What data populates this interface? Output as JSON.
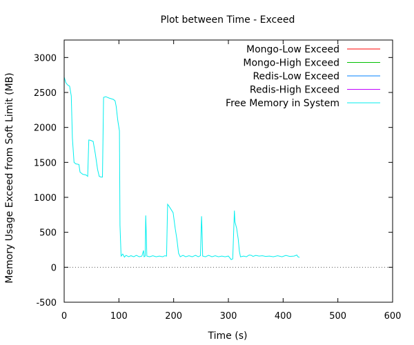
{
  "chart_data": {
    "type": "line",
    "title": "Plot between Time - Exceed",
    "xlabel": "Time (s)",
    "ylabel": "Memory Usage Exceed from Soft Limit (MB)",
    "xlim": [
      0,
      600
    ],
    "ylim": [
      -500,
      3250
    ],
    "xticks": [
      0,
      100,
      200,
      300,
      400,
      500,
      600
    ],
    "yticks": [
      -500,
      0,
      500,
      1000,
      1500,
      2000,
      2500,
      3000
    ],
    "grid": false,
    "zero_line": "dotted",
    "legend_position": "top-right",
    "series": [
      {
        "name": "Mongo-Low Exceed",
        "color": "#ff0000",
        "points": []
      },
      {
        "name": "Mongo-High Exceed",
        "color": "#00c000",
        "points": []
      },
      {
        "name": "Redis-Low Exceed",
        "color": "#0080ff",
        "points": []
      },
      {
        "name": "Redis-High Exceed",
        "color": "#c000ff",
        "points": []
      },
      {
        "name": "Free Memory in System",
        "color": "#00eeee",
        "points": [
          [
            0,
            2720
          ],
          [
            3,
            2640
          ],
          [
            6,
            2610
          ],
          [
            10,
            2590
          ],
          [
            13,
            2450
          ],
          [
            15,
            1850
          ],
          [
            18,
            1500
          ],
          [
            21,
            1480
          ],
          [
            27,
            1470
          ],
          [
            29,
            1360
          ],
          [
            34,
            1330
          ],
          [
            40,
            1320
          ],
          [
            43,
            1300
          ],
          [
            45,
            1820
          ],
          [
            48,
            1815
          ],
          [
            53,
            1800
          ],
          [
            57,
            1620
          ],
          [
            61,
            1400
          ],
          [
            64,
            1300
          ],
          [
            67,
            1290
          ],
          [
            70,
            1290
          ],
          [
            72,
            2430
          ],
          [
            76,
            2440
          ],
          [
            82,
            2420
          ],
          [
            90,
            2400
          ],
          [
            93,
            2380
          ],
          [
            95,
            2300
          ],
          [
            98,
            2100
          ],
          [
            101,
            1950
          ],
          [
            102,
            600
          ],
          [
            104,
            160
          ],
          [
            107,
            190
          ],
          [
            110,
            145
          ],
          [
            113,
            170
          ],
          [
            118,
            150
          ],
          [
            122,
            165
          ],
          [
            127,
            150
          ],
          [
            132,
            170
          ],
          [
            137,
            150
          ],
          [
            142,
            160
          ],
          [
            145,
            240
          ],
          [
            146,
            150
          ],
          [
            148,
            160
          ],
          [
            149,
            740
          ],
          [
            150,
            480
          ],
          [
            151,
            160
          ],
          [
            156,
            150
          ],
          [
            162,
            165
          ],
          [
            168,
            150
          ],
          [
            174,
            160
          ],
          [
            180,
            150
          ],
          [
            184,
            165
          ],
          [
            187,
            160
          ],
          [
            189,
            900
          ],
          [
            191,
            880
          ],
          [
            195,
            830
          ],
          [
            199,
            780
          ],
          [
            203,
            550
          ],
          [
            206,
            400
          ],
          [
            209,
            200
          ],
          [
            212,
            150
          ],
          [
            217,
            170
          ],
          [
            222,
            150
          ],
          [
            228,
            165
          ],
          [
            234,
            150
          ],
          [
            240,
            170
          ],
          [
            245,
            150
          ],
          [
            249,
            165
          ],
          [
            251,
            730
          ],
          [
            252,
            500
          ],
          [
            253,
            160
          ],
          [
            258,
            150
          ],
          [
            264,
            170
          ],
          [
            270,
            150
          ],
          [
            276,
            165
          ],
          [
            282,
            150
          ],
          [
            288,
            160
          ],
          [
            294,
            150
          ],
          [
            300,
            160
          ],
          [
            305,
            110
          ],
          [
            308,
            120
          ],
          [
            311,
            810
          ],
          [
            312,
            650
          ],
          [
            315,
            560
          ],
          [
            318,
            400
          ],
          [
            320,
            230
          ],
          [
            322,
            150
          ],
          [
            328,
            160
          ],
          [
            333,
            150
          ],
          [
            338,
            175
          ],
          [
            342,
            170
          ],
          [
            345,
            155
          ],
          [
            350,
            170
          ],
          [
            356,
            160
          ],
          [
            362,
            165
          ],
          [
            368,
            155
          ],
          [
            375,
            160
          ],
          [
            382,
            150
          ],
          [
            390,
            165
          ],
          [
            398,
            150
          ],
          [
            405,
            170
          ],
          [
            412,
            155
          ],
          [
            420,
            160
          ],
          [
            425,
            175
          ],
          [
            427,
            150
          ],
          [
            430,
            140
          ]
        ]
      }
    ]
  }
}
